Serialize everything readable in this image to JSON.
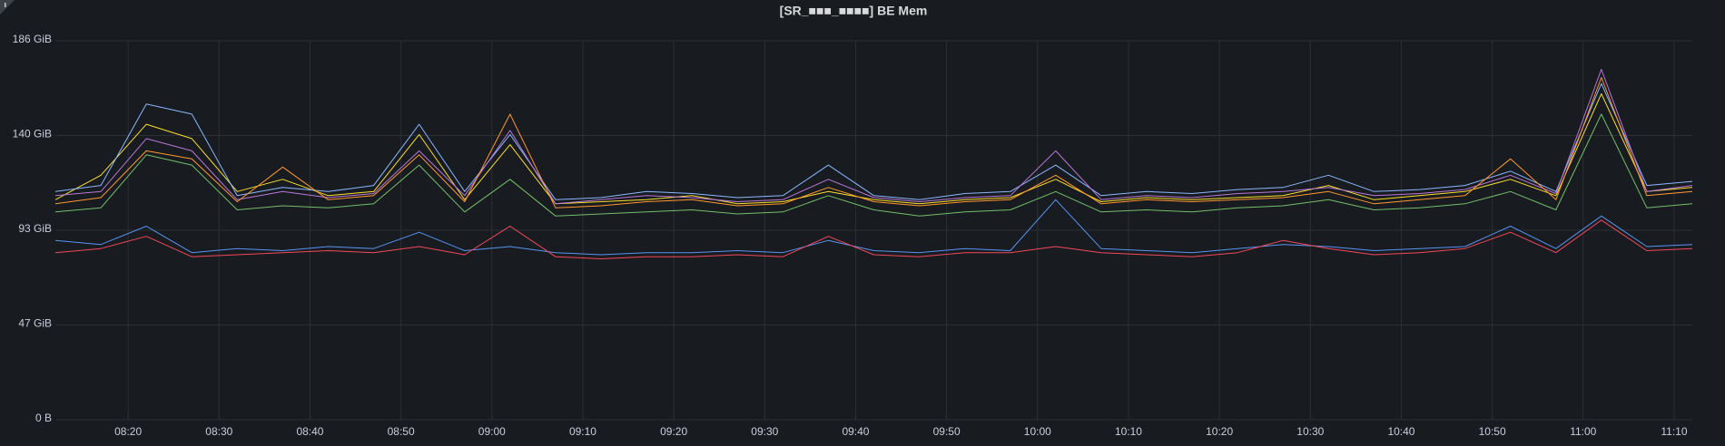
{
  "chart_data": {
    "type": "line",
    "title": "[SR_■■■_■■■■] BE Mem",
    "x": [
      "08:12",
      "08:17",
      "08:22",
      "08:27",
      "08:32",
      "08:37",
      "08:42",
      "08:47",
      "08:52",
      "08:57",
      "09:02",
      "09:07",
      "09:12",
      "09:17",
      "09:22",
      "09:27",
      "09:32",
      "09:37",
      "09:42",
      "09:47",
      "09:52",
      "09:57",
      "10:02",
      "10:07",
      "10:12",
      "10:17",
      "10:22",
      "10:27",
      "10:32",
      "10:37",
      "10:42",
      "10:47",
      "10:52",
      "10:57",
      "11:02",
      "11:07",
      "11:12"
    ],
    "xlim": [
      "08:12",
      "11:12"
    ],
    "xticks": [
      "08:20",
      "08:30",
      "08:40",
      "08:50",
      "09:00",
      "09:10",
      "09:20",
      "09:30",
      "09:40",
      "09:50",
      "10:00",
      "10:10",
      "10:20",
      "10:30",
      "10:40",
      "10:50",
      "11:00",
      "11:10"
    ],
    "ylim": [
      0,
      186
    ],
    "yticks": [
      {
        "value": 0,
        "label": "0 B"
      },
      {
        "value": 46.5,
        "label": "47 GiB"
      },
      {
        "value": 93,
        "label": "93 GiB"
      },
      {
        "value": 139.5,
        "label": "140 GiB"
      },
      {
        "value": 186,
        "label": "186 GiB"
      }
    ],
    "grid": true,
    "series": [
      {
        "color": "#fade2a",
        "values": [
          108,
          120,
          145,
          138,
          112,
          118,
          110,
          112,
          140,
          108,
          135,
          106,
          107,
          108,
          110,
          106,
          107,
          112,
          108,
          106,
          108,
          109,
          118,
          107,
          109,
          108,
          109,
          110,
          115,
          108,
          110,
          112,
          118,
          110,
          160,
          112,
          114
        ]
      },
      {
        "color": "#8ab8ff",
        "values": [
          112,
          115,
          155,
          150,
          110,
          114,
          112,
          115,
          145,
          112,
          140,
          108,
          109,
          112,
          111,
          109,
          110,
          125,
          110,
          108,
          111,
          112,
          125,
          110,
          112,
          111,
          113,
          114,
          120,
          112,
          113,
          115,
          122,
          112,
          165,
          115,
          117
        ]
      },
      {
        "color": "#73bf69",
        "values": [
          102,
          104,
          130,
          125,
          103,
          105,
          104,
          106,
          125,
          102,
          118,
          100,
          101,
          102,
          103,
          101,
          102,
          110,
          103,
          100,
          102,
          103,
          112,
          102,
          103,
          102,
          104,
          105,
          108,
          103,
          104,
          106,
          112,
          103,
          150,
          104,
          106
        ]
      },
      {
        "color": "#b877d9",
        "values": [
          110,
          112,
          138,
          132,
          108,
          112,
          109,
          111,
          132,
          110,
          142,
          106,
          108,
          110,
          109,
          107,
          108,
          118,
          109,
          107,
          109,
          110,
          132,
          108,
          110,
          109,
          111,
          112,
          114,
          110,
          111,
          113,
          120,
          111,
          172,
          112,
          115
        ]
      },
      {
        "color": "#ff9830",
        "values": [
          106,
          109,
          132,
          128,
          107,
          124,
          108,
          110,
          130,
          107,
          150,
          104,
          105,
          107,
          108,
          105,
          106,
          114,
          107,
          105,
          107,
          108,
          120,
          106,
          108,
          107,
          108,
          109,
          112,
          106,
          108,
          110,
          128,
          108,
          168,
          110,
          112
        ]
      },
      {
        "color": "#5794f2",
        "values": [
          88,
          86,
          95,
          82,
          84,
          83,
          85,
          84,
          92,
          83,
          85,
          82,
          81,
          82,
          82,
          83,
          82,
          88,
          83,
          82,
          84,
          83,
          108,
          84,
          83,
          82,
          84,
          86,
          85,
          83,
          84,
          85,
          95,
          84,
          100,
          85,
          86
        ]
      },
      {
        "color": "#f2495c",
        "values": [
          82,
          84,
          90,
          80,
          81,
          82,
          83,
          82,
          85,
          81,
          95,
          80,
          79,
          80,
          80,
          81,
          80,
          90,
          81,
          80,
          82,
          82,
          85,
          82,
          81,
          80,
          82,
          88,
          84,
          81,
          82,
          84,
          92,
          82,
          98,
          83,
          84
        ]
      }
    ]
  }
}
